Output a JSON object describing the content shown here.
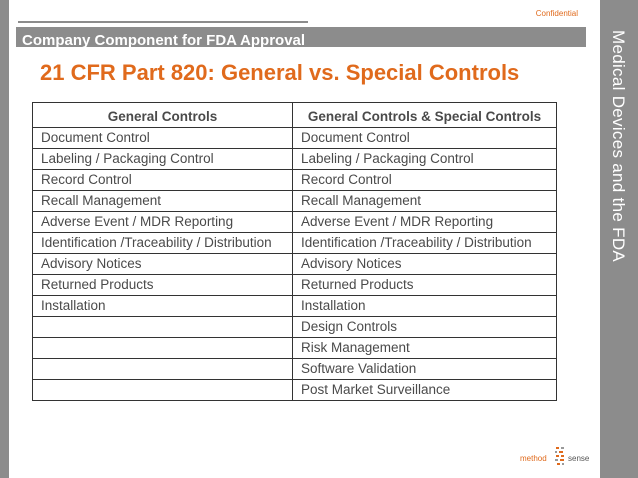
{
  "header": {
    "confidential": "Confidential",
    "section_title": "Company Component for FDA Approval",
    "side_title": "Medical Devices and the FDA"
  },
  "title": "21 CFR Part 820: General vs. Special Controls",
  "table": {
    "headers": [
      "General Controls",
      "General Controls & Special Controls"
    ],
    "rows": [
      [
        "Document Control",
        "Document Control"
      ],
      [
        "Labeling / Packaging Control",
        "Labeling / Packaging Control"
      ],
      [
        "Record Control",
        "Record Control"
      ],
      [
        "Recall Management",
        "Recall Management"
      ],
      [
        "Adverse Event / MDR Reporting",
        "Adverse Event / MDR Reporting"
      ],
      [
        "Identification /Traceability / Distribution",
        "Identification /Traceability / Distribution"
      ],
      [
        "Advisory Notices",
        "Advisory Notices"
      ],
      [
        "Returned Products",
        "Returned Products"
      ],
      [
        "Installation",
        "Installation"
      ],
      [
        "",
        "Design Controls"
      ],
      [
        "",
        "Risk Management"
      ],
      [
        "",
        "Software Validation"
      ],
      [
        "",
        "Post Market Surveillance"
      ]
    ]
  },
  "logo": {
    "part1": "method",
    "part2": "sense"
  },
  "colors": {
    "accent": "#e06a1c",
    "bar": "#8c8c8c",
    "text": "#4a4a4a"
  }
}
